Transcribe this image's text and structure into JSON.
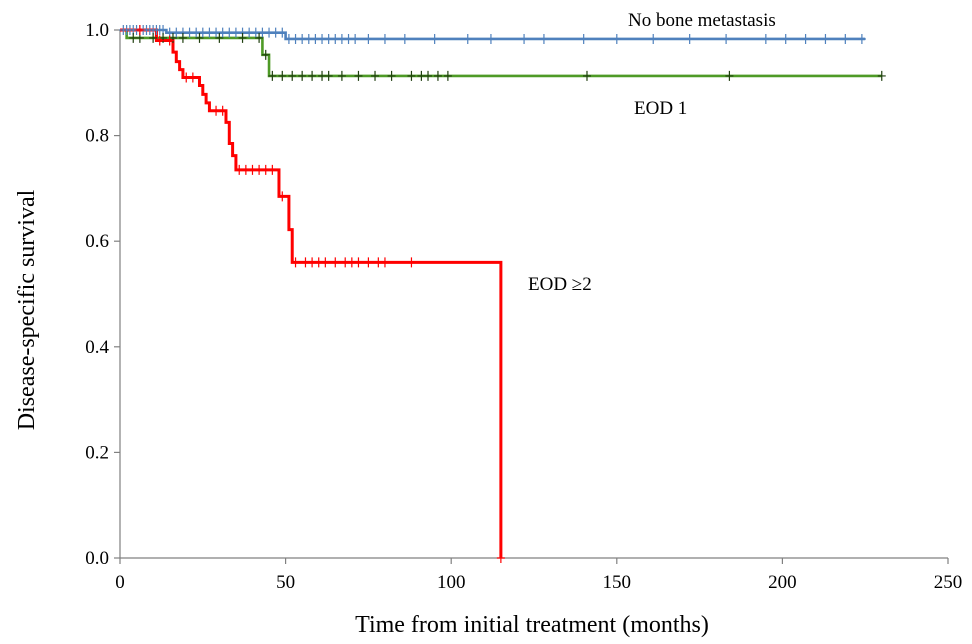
{
  "chart_data": {
    "type": "line",
    "title": "",
    "xlabel": "Time from initial treatment (months)",
    "ylabel": "Disease-specific survival",
    "xlim": [
      0,
      250
    ],
    "ylim": [
      0,
      1.0
    ],
    "x_ticks": [
      {
        "value": 0,
        "label": "0"
      },
      {
        "value": 50,
        "label": "50"
      },
      {
        "value": 100,
        "label": "100"
      },
      {
        "value": 150,
        "label": "150"
      },
      {
        "value": 200,
        "label": "200"
      },
      {
        "value": 250,
        "label": "250"
      }
    ],
    "y_ticks": [
      {
        "value": 0.0,
        "label": "0.0"
      },
      {
        "value": 0.2,
        "label": "0.2"
      },
      {
        "value": 0.4,
        "label": "0.4"
      },
      {
        "value": 0.6,
        "label": "0.6"
      },
      {
        "value": 0.8,
        "label": "0.8"
      },
      {
        "value": 1.0,
        "label": "1.0"
      }
    ],
    "grid": false,
    "legend": "none",
    "series": [
      {
        "name": "No bone metastasis",
        "color": "#4f81bd",
        "steps": [
          [
            0,
            1.0
          ],
          [
            14,
            0.995
          ],
          [
            50,
            0.983
          ],
          [
            225,
            0.983
          ]
        ],
        "censored": [
          1,
          2,
          3,
          4,
          5,
          6,
          7,
          8,
          9,
          10,
          11,
          12,
          13,
          15,
          17,
          19,
          21,
          23,
          25,
          27,
          29,
          31,
          33,
          35,
          37,
          39,
          41,
          43,
          45,
          47,
          49,
          51,
          53,
          55,
          57,
          59,
          61,
          63,
          65,
          67,
          69,
          71,
          75,
          80,
          86,
          95,
          105,
          112,
          122,
          128,
          140,
          150,
          161,
          172,
          183,
          195,
          201,
          207,
          213,
          219,
          224
        ]
      },
      {
        "name": "EOD 1",
        "color": "#4e9a26",
        "steps": [
          [
            0,
            1.0
          ],
          [
            2,
            0.985
          ],
          [
            43,
            0.953
          ],
          [
            45,
            0.913
          ],
          [
            230,
            0.913
          ]
        ],
        "censored": [
          4,
          6,
          10,
          13,
          16,
          19,
          24,
          30,
          37,
          42,
          44,
          46,
          49,
          52,
          55,
          58,
          61,
          63,
          67,
          72,
          77,
          82,
          88,
          91,
          93,
          96,
          99,
          141,
          184,
          230
        ]
      },
      {
        "name": "EOD ≥2",
        "color": "#ff0000",
        "steps": [
          [
            0,
            1.0
          ],
          [
            11,
            0.98
          ],
          [
            16,
            0.958
          ],
          [
            17,
            0.94
          ],
          [
            18,
            0.925
          ],
          [
            19,
            0.91
          ],
          [
            24,
            0.895
          ],
          [
            25,
            0.878
          ],
          [
            26,
            0.862
          ],
          [
            27,
            0.847
          ],
          [
            32,
            0.825
          ],
          [
            33,
            0.785
          ],
          [
            34,
            0.762
          ],
          [
            35,
            0.735
          ],
          [
            48,
            0.685
          ],
          [
            51,
            0.622
          ],
          [
            52,
            0.56
          ],
          [
            115,
            0.56
          ],
          [
            115,
            0.0
          ]
        ],
        "censored": [
          6,
          12,
          15,
          20,
          22,
          29,
          31,
          36,
          38,
          40,
          42,
          44,
          46,
          49,
          53,
          56,
          58,
          60,
          62,
          65,
          68,
          70,
          72,
          75,
          78,
          80,
          88,
          115
        ]
      }
    ],
    "annotations": [
      {
        "text": "No bone metastasis",
        "series": 0
      },
      {
        "text": "EOD 1",
        "series": 1
      },
      {
        "text": "EOD ≥2",
        "series": 2
      }
    ]
  }
}
